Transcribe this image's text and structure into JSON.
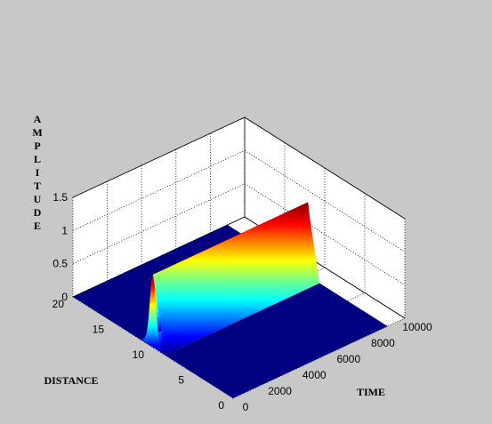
{
  "chart_data": {
    "type": "surface3d",
    "title": "",
    "xlabel": "TIME",
    "ylabel": "DISTANCE",
    "zlabel": "AMPLITUDE",
    "xlim": [
      0,
      10000
    ],
    "ylim": [
      0,
      20
    ],
    "zlim": [
      0,
      1.5
    ],
    "x_ticks": [
      "0",
      "2000",
      "4000",
      "6000",
      "8000",
      "10000"
    ],
    "y_ticks": [
      "0",
      "5",
      "10",
      "15",
      "20"
    ],
    "z_ticks": [
      "0",
      "0.5",
      "1",
      "1.5"
    ],
    "grid": true,
    "colormap": "jet",
    "surface": {
      "description_free_params": true,
      "pulse_center_distance": 10,
      "pulse_peak_amplitude": 1.1,
      "pulse_width_distance": 0.5,
      "time_extent": [
        0,
        9000
      ]
    },
    "colors": {
      "figure_background": "#c8c8c8",
      "axes_background": "#ffffff",
      "floor_color": "#000080"
    }
  }
}
